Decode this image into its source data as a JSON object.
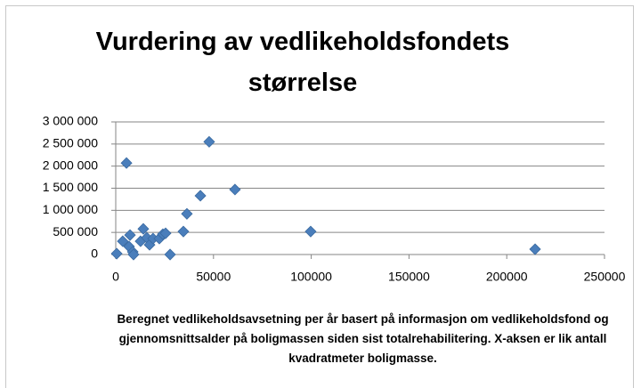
{
  "chart_data": {
    "type": "scatter",
    "title": "Vurdering av vedlikeholdsfondets størrelse",
    "x_label": "Beregnet vedlikeholdsavsetning per år basert på informasjon om vedlikeholdsfond og gjennomsnittsalder på boligmassen siden sist totalrehabilitering. X-aksen er lik antall kvadratmeter boligmasse.",
    "color": "#4a7ebb",
    "grid": true,
    "x": [
      500,
      5500,
      3600,
      7300,
      6800,
      8700,
      9100,
      14100,
      12700,
      15900,
      17300,
      19100,
      22300,
      24100,
      25500,
      27800,
      34600,
      36400,
      43300,
      47800,
      61000,
      99700,
      214500
    ],
    "values": [
      20000,
      2070000,
      300000,
      440000,
      180000,
      60000,
      0,
      580000,
      300000,
      380000,
      220000,
      360000,
      360000,
      460000,
      480000,
      0,
      520000,
      920000,
      1330000,
      2550000,
      1470000,
      520000,
      120000
    ],
    "xlim": [
      0,
      250000
    ],
    "xticks": [
      0,
      50000,
      100000,
      150000,
      200000,
      250000
    ],
    "ylim": [
      0,
      3000000
    ],
    "yticks": [
      0,
      {
        "value": 500000,
        "label": "500 000"
      },
      {
        "value": 1000000,
        "label": "1 000 000"
      },
      {
        "value": 1500000,
        "label": "1 500 000"
      },
      {
        "value": 2000000,
        "label": "2 000 000"
      },
      {
        "value": 2500000,
        "label": "2 500 000"
      },
      {
        "value": 3000000,
        "label": "3 000 000"
      }
    ]
  }
}
